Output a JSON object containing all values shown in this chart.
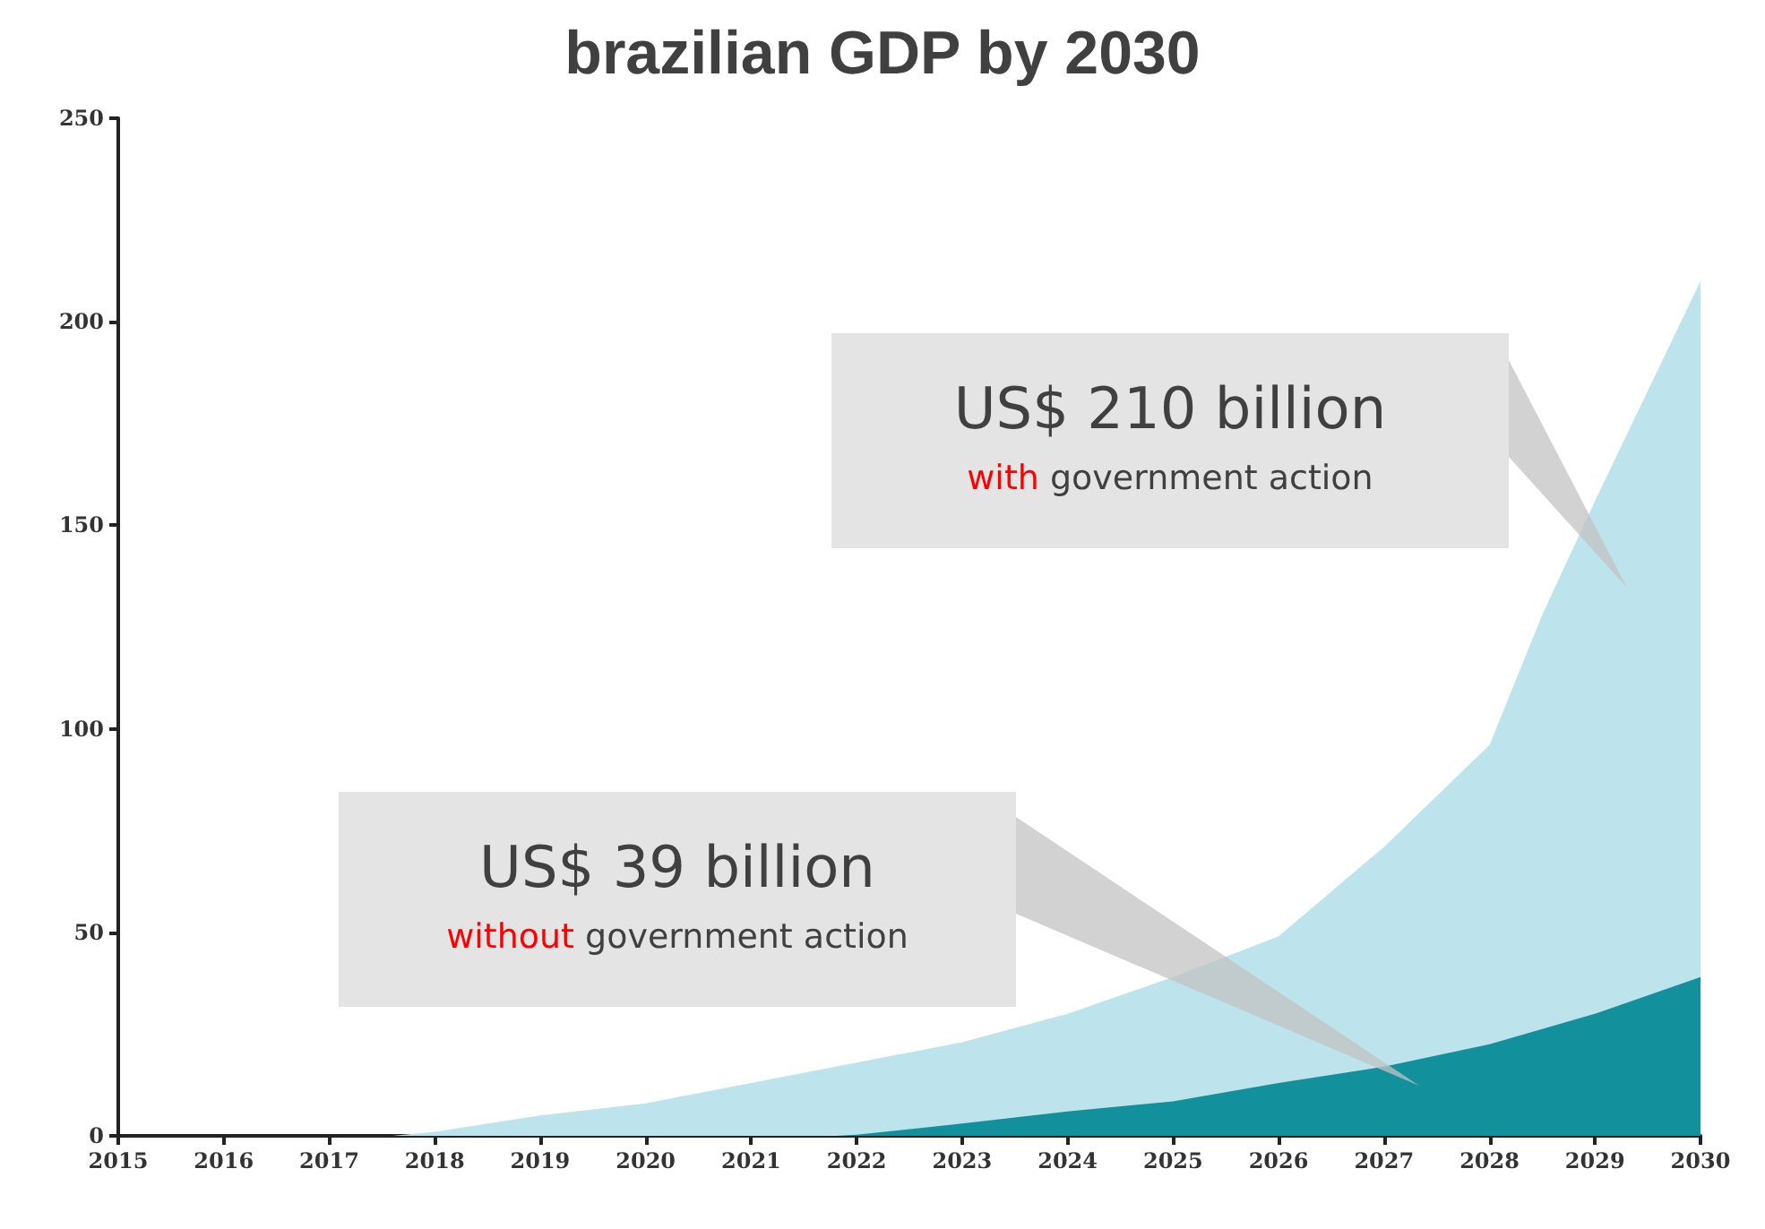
{
  "chart_data": {
    "type": "area",
    "title": "brazilian GDP by 2030",
    "xlim": [
      2015,
      2030
    ],
    "xticks": [
      2015,
      2016,
      2017,
      2018,
      2019,
      2020,
      2021,
      2022,
      2023,
      2024,
      2025,
      2026,
      2027,
      2028,
      2029,
      2030
    ],
    "ylim": [
      0,
      250
    ],
    "yticks": [
      0,
      50,
      100,
      150,
      200,
      250
    ],
    "grid": false,
    "marker": "none",
    "series": [
      {
        "color": "#bde3ec",
        "x": [
          2017.6,
          2018,
          2019,
          2020,
          2021,
          2022,
          2023,
          2024,
          2025,
          2026,
          2027,
          2028,
          2028.5,
          2029,
          2030
        ],
        "values": [
          0,
          1,
          5,
          8,
          13,
          18,
          23,
          30,
          39,
          49,
          71,
          96,
          128,
          156,
          210
        ]
      },
      {
        "color": "#12909b",
        "x": [
          2021.8,
          2022,
          2023,
          2024,
          2025,
          2026,
          2027,
          2028,
          2029,
          2030
        ],
        "values": [
          0,
          0.3,
          3,
          6,
          8.5,
          13,
          17,
          22.5,
          30,
          39
        ]
      }
    ],
    "annotations": [
      "US$ 210 billion",
      "with government action",
      "US$ 39 billion",
      "without government action"
    ]
  }
}
